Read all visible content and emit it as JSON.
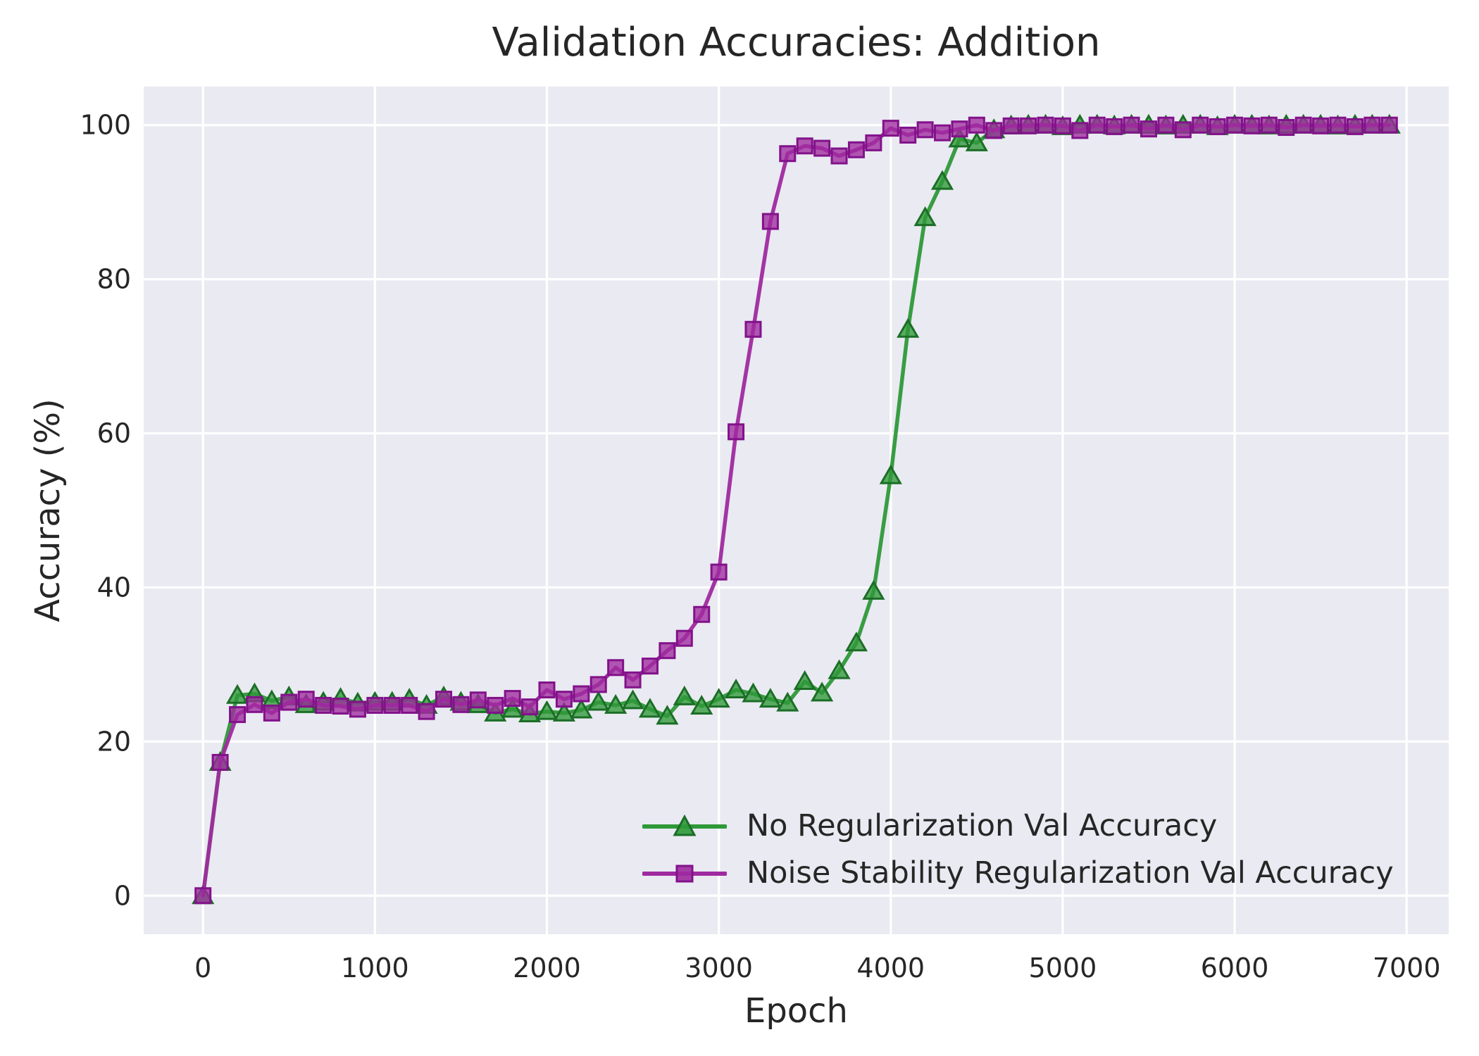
{
  "chart_data": {
    "type": "line",
    "title": "Validation Accuracies: Addition",
    "xlabel": "Epoch",
    "ylabel": "Accuracy (%)",
    "x_ticks": [
      0,
      1000,
      2000,
      3000,
      4000,
      5000,
      6000,
      7000
    ],
    "y_ticks": [
      0,
      20,
      40,
      60,
      80,
      100
    ],
    "xlim": [
      -345,
      7245
    ],
    "ylim": [
      -5,
      105
    ],
    "grid": true,
    "legend_position": "lower right",
    "plot_background": "#eaeaf2",
    "grid_color": "#ffffff",
    "text_color": "#262626",
    "x": [
      0,
      100,
      200,
      300,
      400,
      500,
      600,
      700,
      800,
      900,
      1000,
      1100,
      1200,
      1300,
      1400,
      1500,
      1600,
      1700,
      1800,
      1900,
      2000,
      2100,
      2200,
      2300,
      2400,
      2500,
      2600,
      2700,
      2800,
      2900,
      3000,
      3100,
      3200,
      3300,
      3400,
      3500,
      3600,
      3700,
      3800,
      3900,
      4000,
      4100,
      4200,
      4300,
      4400,
      4500,
      4600,
      4700,
      4800,
      4900,
      5000,
      5100,
      5200,
      5300,
      5400,
      5500,
      5600,
      5700,
      5800,
      5900,
      6000,
      6100,
      6200,
      6300,
      6400,
      6500,
      6600,
      6700,
      6800,
      6900
    ],
    "series": [
      {
        "name": "No Regularization Val Accuracy",
        "marker": "triangle",
        "color": "#2e9939",
        "edge_color": "#1b6e26",
        "values": [
          0,
          17.3,
          26.0,
          26.2,
          25.3,
          25.8,
          24.8,
          25.1,
          25.6,
          25.0,
          25.1,
          25.1,
          25.5,
          24.7,
          25.8,
          25.1,
          24.8,
          23.7,
          24.2,
          23.6,
          23.9,
          23.7,
          24.1,
          25.1,
          24.7,
          25.3,
          24.2,
          23.3,
          25.8,
          24.6,
          25.5,
          26.7,
          26.2,
          25.5,
          25.0,
          27.8,
          26.3,
          29.2,
          32.8,
          39.5,
          54.5,
          73.5,
          88.0,
          92.7,
          98.2,
          97.7,
          99.4,
          99.9,
          100,
          100,
          99.8,
          100,
          100,
          99.9,
          100,
          100,
          99.9,
          100,
          100,
          99.8,
          100,
          100,
          99.9,
          100,
          100,
          100,
          99.9,
          100,
          100,
          100
        ]
      },
      {
        "name": "Noise Stability Regularization Val Accuracy",
        "marker": "square",
        "color": "#9f2a9f",
        "edge_color": "#82128a",
        "values": [
          0,
          17.3,
          23.5,
          24.8,
          23.7,
          25.1,
          25.5,
          24.7,
          24.6,
          24.2,
          24.7,
          24.7,
          24.7,
          23.9,
          25.5,
          24.8,
          25.4,
          24.7,
          25.6,
          24.5,
          26.7,
          25.5,
          26.2,
          27.4,
          29.6,
          28.0,
          29.8,
          31.8,
          33.4,
          36.5,
          42.0,
          60.2,
          73.5,
          87.5,
          96.3,
          97.3,
          97.0,
          96.0,
          96.8,
          97.7,
          99.6,
          98.7,
          99.4,
          99.0,
          99.5,
          100,
          99.3,
          99.9,
          99.9,
          100,
          99.9,
          99.3,
          100,
          99.8,
          100,
          99.5,
          100,
          99.4,
          100,
          99.8,
          100,
          99.9,
          100,
          99.7,
          100,
          99.9,
          100,
          99.8,
          100,
          100
        ]
      }
    ]
  }
}
